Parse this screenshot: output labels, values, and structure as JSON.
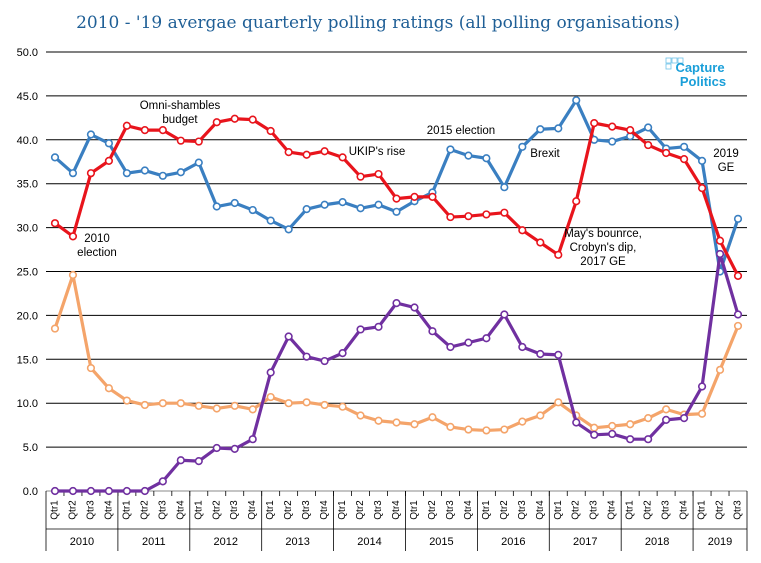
{
  "chart_data": {
    "type": "line",
    "title": "2010 - '19 avergae quarterly polling ratings (all polling organisations)",
    "xlabel": "",
    "ylabel": "",
    "ylim": [
      0,
      50
    ],
    "ytick_labels": [
      "0.0",
      "5.0",
      "10.0",
      "15.0",
      "20.0",
      "25.0",
      "30.0",
      "35.0",
      "40.0",
      "45.0",
      "50.0"
    ],
    "grid": "horizontal",
    "legend": "none",
    "years": [
      "2010",
      "2011",
      "2012",
      "2013",
      "2014",
      "2015",
      "2016",
      "2017",
      "2018",
      "2019"
    ],
    "quarters_per_year": [
      "Qtr1",
      "Qtr2",
      "Qtr3",
      "Qtr4"
    ],
    "quarters_2019": [
      "Qtr1",
      "Qtr2",
      "Qtr3"
    ],
    "series": [
      {
        "color": "#3a7fc1",
        "values": [
          38.0,
          36.2,
          40.6,
          39.6,
          36.2,
          36.5,
          35.9,
          36.3,
          37.4,
          32.4,
          32.8,
          32.0,
          30.8,
          29.8,
          32.1,
          32.6,
          32.9,
          32.2,
          32.6,
          31.8,
          33.0,
          34.0,
          38.9,
          38.2,
          37.9,
          34.6,
          39.2,
          41.2,
          41.3,
          44.5,
          40.0,
          39.8,
          40.4,
          41.4,
          39.0,
          39.2,
          37.6,
          25.0,
          31.0
        ]
      },
      {
        "color": "#e8141c",
        "values": [
          30.5,
          29.0,
          36.2,
          37.6,
          41.6,
          41.1,
          41.1,
          39.9,
          39.8,
          42.0,
          42.4,
          42.3,
          41.0,
          38.6,
          38.3,
          38.7,
          38.0,
          35.8,
          36.1,
          33.3,
          33.5,
          33.5,
          31.2,
          31.3,
          31.5,
          31.7,
          29.7,
          28.3,
          26.9,
          33.0,
          41.9,
          41.5,
          41.1,
          39.4,
          38.5,
          37.8,
          34.5,
          28.5,
          24.5
        ]
      },
      {
        "color": "#f4a46a",
        "values": [
          18.5,
          24.6,
          14.0,
          11.7,
          10.3,
          9.8,
          10.0,
          10.0,
          9.7,
          9.4,
          9.7,
          9.3,
          10.7,
          10.0,
          10.1,
          9.8,
          9.6,
          8.6,
          8.0,
          7.8,
          7.6,
          8.4,
          7.3,
          7.0,
          6.9,
          7.0,
          7.9,
          8.6,
          10.1,
          8.6,
          7.2,
          7.4,
          7.6,
          8.3,
          9.3,
          8.7,
          8.8,
          13.8,
          18.8
        ]
      },
      {
        "color": "#7030a0",
        "values": [
          0.0,
          0.0,
          0.0,
          0.0,
          0.0,
          0.0,
          1.1,
          3.5,
          3.4,
          4.9,
          4.8,
          5.9,
          13.5,
          17.6,
          15.3,
          14.8,
          15.7,
          18.4,
          18.7,
          21.4,
          20.9,
          18.2,
          16.4,
          16.9,
          17.4,
          20.1,
          16.4,
          15.6,
          15.5,
          7.8,
          6.4,
          6.5,
          5.9,
          5.9,
          8.1,
          8.3,
          11.9,
          27.0,
          20.1
        ]
      }
    ],
    "annotations": [
      {
        "lines": [
          "2010",
          "election"
        ]
      },
      {
        "lines": [
          "Omni-shambles",
          "budget"
        ]
      },
      {
        "lines": [
          "UKIP's rise"
        ]
      },
      {
        "lines": [
          "2015 election"
        ]
      },
      {
        "lines": [
          "Brexit"
        ]
      },
      {
        "lines": [
          "May's bounrce,",
          "Crobyn's dip,",
          "2017 GE"
        ]
      },
      {
        "lines": [
          "2019",
          "GE"
        ]
      }
    ]
  },
  "logo": {
    "line1": "Capture",
    "line2": "Politics"
  }
}
